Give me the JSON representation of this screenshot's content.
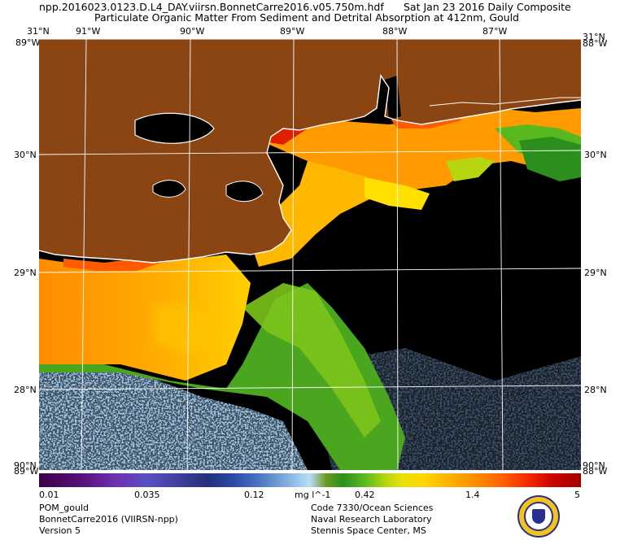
{
  "header": {
    "filename": "npp.2016023.0123.D.L4_DAY.viirsn.BonnetCarre2016.v05.750m.hdf",
    "date": "Sat Jan 23 2016 Daily Composite",
    "product": "Particulate Organic Matter From Sediment and Detrital Absorption at 412nm, Gould"
  },
  "lon_labels": [
    "91°W",
    "90°W",
    "89°W",
    "88°W",
    "87°W"
  ],
  "lat_labels": [
    "30°N",
    "29°N",
    "28°N"
  ],
  "corners": {
    "tl_lat": "31°N",
    "tl_lon": "89°W",
    "tr_lat": "31°N",
    "tr_lon": "88°W",
    "bl_lat": "90°N",
    "bl_lon": "89°W",
    "br_lat": "90°N",
    "br_lon": "88°W"
  },
  "colorbar": {
    "ticks": [
      "0.01",
      "0.035",
      "0.12",
      "0.42",
      "1.4",
      "5"
    ],
    "units": "mg l^-1"
  },
  "footer_left": [
    "POM_gould",
    "BonnetCarre2016 (VIIRSN-npp)",
    "Version 5"
  ],
  "footer_right": [
    "Code 7330/Ocean Sciences",
    "Naval Research Laboratory",
    "Stennis Space Center, MS"
  ],
  "colors": {
    "land": "#8b4513",
    "no_data": "#000000",
    "grid": "#ffffff",
    "coast": "#ffffff"
  }
}
